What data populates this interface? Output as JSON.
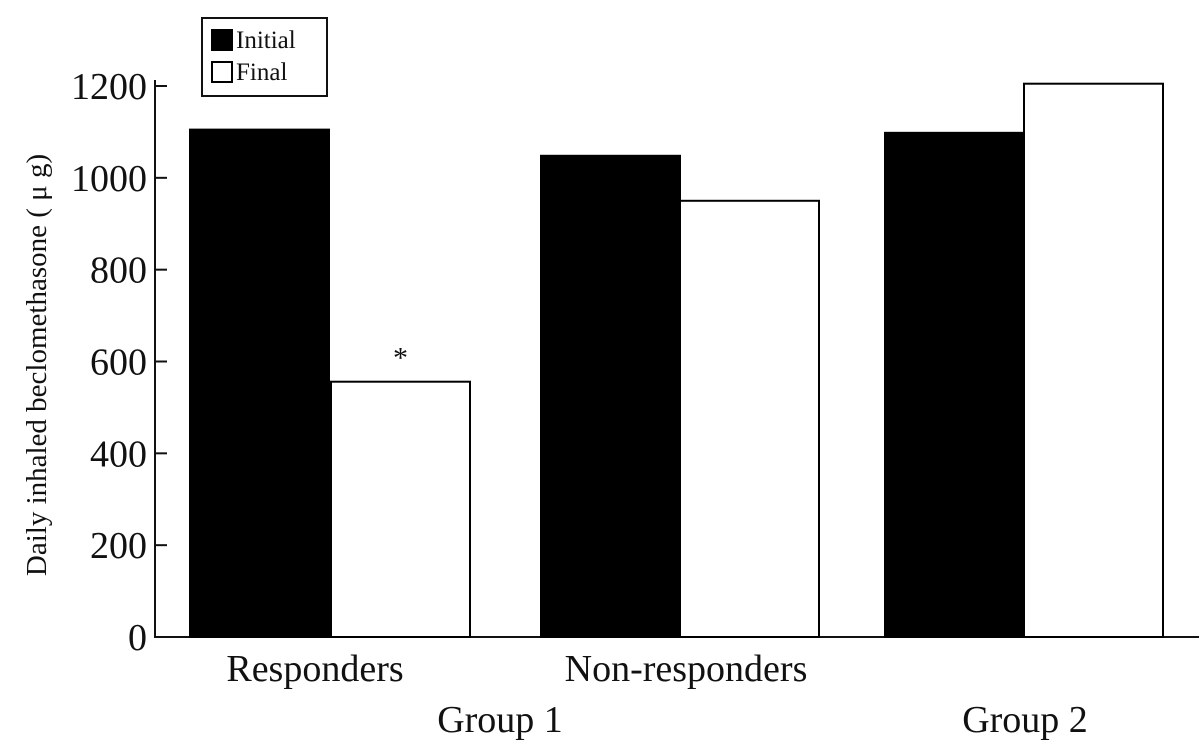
{
  "chart_data": {
    "type": "bar",
    "ylabel": "Daily inhaled beclomethasone ( μ g)",
    "xlabel": "",
    "ylim": [
      0,
      1200
    ],
    "yticks": [
      0,
      200,
      400,
      600,
      800,
      1000,
      1200
    ],
    "grid": false,
    "legend_position": "top-left",
    "categories": [
      "Responders",
      "Non-responders",
      ""
    ],
    "groups": [
      {
        "label": "Group 1",
        "categories": [
          "Responders",
          "Non-responders"
        ]
      },
      {
        "label": "Group 2",
        "categories": [
          ""
        ]
      }
    ],
    "series": [
      {
        "name": "Initial",
        "color": "#000000",
        "values": [
          1105,
          1048,
          1098
        ]
      },
      {
        "name": "Final",
        "color": "#ffffff",
        "values": [
          556,
          950,
          1205
        ]
      }
    ],
    "annotations": [
      {
        "text": "*",
        "category": "Responders",
        "series": "Final"
      }
    ]
  }
}
